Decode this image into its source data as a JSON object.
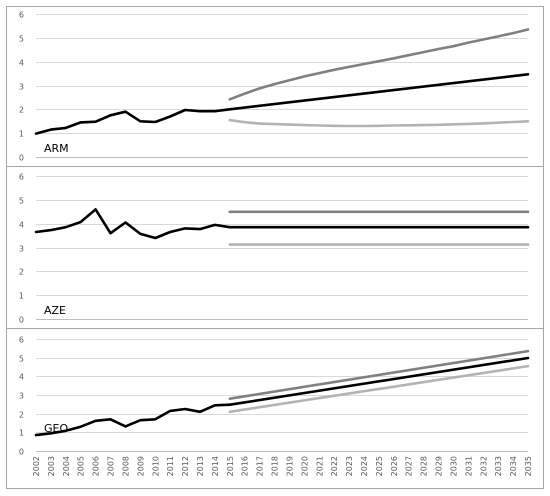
{
  "chart_data": {
    "type": "line",
    "x": [
      2002,
      2003,
      2004,
      2005,
      2006,
      2007,
      2008,
      2009,
      2010,
      2011,
      2012,
      2013,
      2014,
      2015,
      2016,
      2017,
      2018,
      2019,
      2020,
      2021,
      2022,
      2023,
      2024,
      2025,
      2026,
      2027,
      2028,
      2029,
      2030,
      2031,
      2032,
      2033,
      2034,
      2035
    ],
    "x_tick_labels": [
      "2002",
      "2003",
      "2004",
      "2005",
      "2006",
      "2007",
      "2008",
      "2009",
      "2010",
      "2011",
      "2012",
      "2013",
      "2014",
      "2015",
      "2016",
      "2017",
      "2018",
      "2019",
      "2020",
      "2021",
      "2022",
      "2023",
      "2024",
      "2025",
      "2026",
      "2027",
      "2028",
      "2029",
      "2030",
      "2031",
      "2032",
      "2033",
      "2034",
      "2035"
    ],
    "ylim": [
      0,
      6
    ],
    "y_tick_labels": [
      "0",
      "1",
      "2",
      "3",
      "4",
      "5",
      "6"
    ],
    "grid": "horizontal",
    "colors": {
      "history": "#000000",
      "upper": "#808080",
      "lower": "#b3b3b3"
    },
    "panels": [
      {
        "label": "ARM",
        "history": {
          "x": [
            2002,
            2003,
            2004,
            2005,
            2006,
            2007,
            2008,
            2009,
            2010,
            2011,
            2012,
            2013,
            2014,
            2015
          ],
          "values": [
            0.98,
            1.15,
            1.22,
            1.45,
            1.48,
            1.75,
            1.9,
            1.5,
            1.47,
            1.7,
            1.97,
            1.92,
            1.92,
            2.0
          ]
        },
        "central": {
          "x": [
            2015,
            2035
          ],
          "values": [
            2.0,
            3.47
          ]
        },
        "upper": {
          "x": [
            2015,
            2016,
            2017,
            2018,
            2019,
            2020,
            2021,
            2022,
            2023,
            2024,
            2025,
            2026,
            2027,
            2028,
            2029,
            2030,
            2031,
            2032,
            2033,
            2034,
            2035
          ],
          "values": [
            2.42,
            2.66,
            2.88,
            3.06,
            3.22,
            3.38,
            3.52,
            3.66,
            3.78,
            3.9,
            4.02,
            4.14,
            4.27,
            4.4,
            4.53,
            4.65,
            4.8,
            4.93,
            5.06,
            5.2,
            5.35
          ]
        },
        "lower": {
          "x": [
            2015,
            2016,
            2017,
            2018,
            2019,
            2020,
            2021,
            2022,
            2023,
            2024,
            2025,
            2026,
            2027,
            2028,
            2029,
            2030,
            2031,
            2032,
            2033,
            2034,
            2035
          ],
          "values": [
            1.55,
            1.46,
            1.4,
            1.38,
            1.36,
            1.34,
            1.32,
            1.31,
            1.3,
            1.3,
            1.31,
            1.32,
            1.33,
            1.34,
            1.35,
            1.37,
            1.39,
            1.41,
            1.44,
            1.47,
            1.5
          ]
        }
      },
      {
        "label": "AZE",
        "history": {
          "x": [
            2002,
            2003,
            2004,
            2005,
            2006,
            2007,
            2008,
            2009,
            2010,
            2011,
            2012,
            2013,
            2014,
            2015
          ],
          "values": [
            3.65,
            3.73,
            3.85,
            4.07,
            4.6,
            3.6,
            4.05,
            3.57,
            3.4,
            3.65,
            3.8,
            3.77,
            3.95,
            3.85
          ]
        },
        "central": {
          "x": [
            2015,
            2035
          ],
          "values": [
            3.85,
            3.85
          ]
        },
        "upper": {
          "x": [
            2015,
            2035
          ],
          "values": [
            4.5,
            4.5
          ]
        },
        "lower": {
          "x": [
            2015,
            2035
          ],
          "values": [
            3.12,
            3.12
          ]
        }
      },
      {
        "label": "GEO",
        "history": {
          "x": [
            2002,
            2003,
            2004,
            2005,
            2006,
            2007,
            2008,
            2009,
            2010,
            2011,
            2012,
            2013,
            2014,
            2015
          ],
          "values": [
            0.85,
            0.95,
            1.08,
            1.3,
            1.62,
            1.7,
            1.32,
            1.65,
            1.7,
            2.15,
            2.25,
            2.1,
            2.45,
            2.48
          ]
        },
        "central": {
          "x": [
            2015,
            2035
          ],
          "values": [
            2.48,
            4.98
          ]
        },
        "upper": {
          "x": [
            2015,
            2035
          ],
          "values": [
            2.8,
            5.35
          ]
        },
        "lower": {
          "x": [
            2015,
            2035
          ],
          "values": [
            2.1,
            4.55
          ]
        }
      }
    ]
  }
}
